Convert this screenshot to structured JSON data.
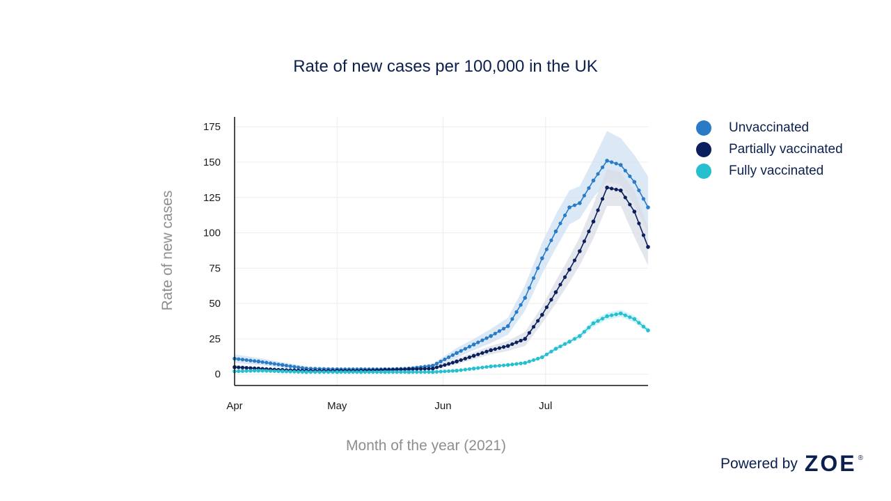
{
  "chart_data": {
    "type": "line",
    "title": "Rate of new cases per 100,000 in the UK",
    "xlabel": "Month of the year (2021)",
    "ylabel": "Rate of new cases",
    "x_ticks": [
      "Apr",
      "May",
      "Jun",
      "Jul"
    ],
    "x_range": [
      "2021-04-01",
      "2021-07-31"
    ],
    "ylim": [
      -8,
      182
    ],
    "y_ticks": [
      0,
      25,
      50,
      75,
      100,
      125,
      150,
      175
    ],
    "grid": true,
    "legend_position": "top-right",
    "series": [
      {
        "name": "Unvaccinated",
        "color": "#2a7bc5",
        "band_color": "#cfe0f3",
        "confidence_band": true,
        "values": [
          11,
          9,
          6.5,
          4,
          3.5,
          3.5,
          3.5,
          4,
          6,
          15,
          21,
          27,
          34,
          54,
          82,
          101,
          118,
          121,
          137,
          151,
          148,
          136,
          118
        ],
        "lower": [
          8,
          6.5,
          4.5,
          2.5,
          2.5,
          2.5,
          2.5,
          3,
          4.5,
          11.5,
          17,
          22,
          28,
          45,
          71,
          89,
          106,
          110,
          125,
          136,
          134,
          120,
          100
        ],
        "upper": [
          14,
          11.5,
          8.5,
          5.5,
          4.5,
          4.5,
          4.5,
          5,
          7.5,
          18.5,
          25,
          32,
          40,
          63,
          93,
          113,
          130,
          133,
          152,
          172,
          167,
          155,
          140
        ],
        "x": [
          "2021-04-01",
          "2021-04-08",
          "2021-04-15",
          "2021-04-22",
          "2021-05-01",
          "2021-05-08",
          "2021-05-15",
          "2021-05-22",
          "2021-05-29",
          "2021-06-05",
          "2021-06-10",
          "2021-06-15",
          "2021-06-20",
          "2021-06-25",
          "2021-06-30",
          "2021-07-04",
          "2021-07-08",
          "2021-07-11",
          "2021-07-15",
          "2021-07-19",
          "2021-07-23",
          "2021-07-27",
          "2021-07-31"
        ]
      },
      {
        "name": "Partially vaccinated",
        "color": "#0b1f5c",
        "band_color": "#d9dde6",
        "confidence_band": true,
        "values": [
          5,
          4,
          3,
          2.5,
          2.5,
          2.5,
          3,
          3.5,
          4,
          9,
          13,
          17,
          20,
          25,
          42,
          58,
          74,
          87,
          108,
          132,
          130,
          115,
          90
        ],
        "lower": [
          3.5,
          3,
          2,
          2,
          2,
          2,
          2,
          2.5,
          3,
          7,
          10.5,
          14,
          16.5,
          20,
          36,
          50,
          65,
          77,
          96,
          119,
          119,
          97,
          77
        ],
        "upper": [
          6.5,
          5,
          4,
          3,
          3,
          3,
          4,
          4.5,
          5,
          11,
          15.5,
          20,
          23.5,
          30,
          48,
          66,
          83,
          97,
          120,
          145,
          143,
          130,
          104
        ],
        "x": [
          "2021-04-01",
          "2021-04-08",
          "2021-04-15",
          "2021-04-22",
          "2021-05-01",
          "2021-05-08",
          "2021-05-15",
          "2021-05-22",
          "2021-05-29",
          "2021-06-05",
          "2021-06-10",
          "2021-06-15",
          "2021-06-20",
          "2021-06-25",
          "2021-06-30",
          "2021-07-04",
          "2021-07-08",
          "2021-07-11",
          "2021-07-15",
          "2021-07-19",
          "2021-07-23",
          "2021-07-27",
          "2021-07-31"
        ]
      },
      {
        "name": "Fully vaccinated",
        "color": "#26bfd0",
        "band_color": "#c7f0f4",
        "confidence_band": true,
        "values": [
          2,
          2.5,
          2,
          1.5,
          1.5,
          1.5,
          1.5,
          1.5,
          1.5,
          2.5,
          4,
          5.5,
          6.5,
          8,
          12,
          18,
          23,
          27,
          36,
          41,
          43,
          39,
          31
        ],
        "lower": [
          1.5,
          2,
          1.5,
          1,
          1,
          1,
          1,
          1,
          1,
          2,
          3.5,
          5,
          6,
          7,
          11,
          16.5,
          21.5,
          25,
          33.5,
          38.5,
          40.5,
          36.5,
          29
        ],
        "upper": [
          2.5,
          3,
          2.5,
          2,
          2,
          2,
          2,
          2,
          2,
          3,
          4.5,
          6,
          7,
          9,
          13,
          19.5,
          24.5,
          29,
          38.5,
          43.5,
          45.5,
          41.5,
          33
        ],
        "x": [
          "2021-04-01",
          "2021-04-08",
          "2021-04-15",
          "2021-04-22",
          "2021-05-01",
          "2021-05-08",
          "2021-05-15",
          "2021-05-22",
          "2021-05-29",
          "2021-06-05",
          "2021-06-10",
          "2021-06-15",
          "2021-06-20",
          "2021-06-25",
          "2021-06-30",
          "2021-07-04",
          "2021-07-08",
          "2021-07-11",
          "2021-07-15",
          "2021-07-19",
          "2021-07-23",
          "2021-07-27",
          "2021-07-31"
        ]
      }
    ]
  },
  "branding": {
    "powered_by": "Powered by",
    "logo_text": "ZOE",
    "registered_mark": "®"
  }
}
